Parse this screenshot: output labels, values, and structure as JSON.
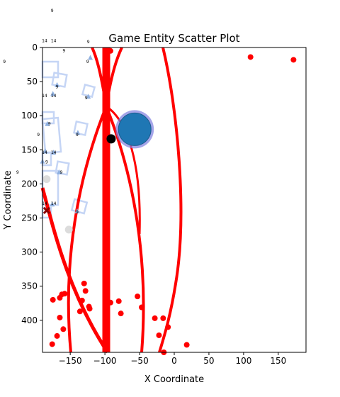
{
  "chart_data": {
    "type": "scatter",
    "title": "Game Entity Scatter Plot",
    "xlabel": "X Coordinate",
    "ylabel": "Y Coordinate",
    "xlim": [
      -190,
      190
    ],
    "ylim": [
      447,
      0
    ],
    "y_inverted": true,
    "grid": false,
    "x_ticks": [
      -150,
      -100,
      -50,
      0,
      50,
      100,
      150
    ],
    "y_ticks": [
      0,
      50,
      100,
      150,
      200,
      250,
      300,
      350,
      400
    ],
    "colors": {
      "red": "#ff0000",
      "blue": "#1f77b4",
      "ring": "#7f7fdf",
      "black": "#000000",
      "darkred": "#8b0000",
      "pale_blue": "#c5d5f5",
      "tri_blue": "#8fb0e0",
      "gray": "#d8d8d8"
    },
    "red_points": [
      [
        110,
        14
      ],
      [
        172,
        18
      ],
      [
        -92,
        5
      ],
      [
        -175,
        370
      ],
      [
        -165,
        367
      ],
      [
        -162,
        362
      ],
      [
        -158,
        361
      ],
      [
        -130,
        346
      ],
      [
        -128,
        357
      ],
      [
        -133,
        371
      ],
      [
        -123,
        380
      ],
      [
        -122,
        383
      ],
      [
        -136,
        387
      ],
      [
        -165,
        396
      ],
      [
        -160,
        413
      ],
      [
        -169,
        423
      ],
      [
        -176,
        435
      ],
      [
        -92,
        374
      ],
      [
        -80,
        372
      ],
      [
        -77,
        390
      ],
      [
        -53,
        365
      ],
      [
        -47,
        381
      ],
      [
        -28,
        397
      ],
      [
        -16,
        397
      ],
      [
        -9,
        410
      ],
      [
        -22,
        422
      ],
      [
        -15,
        447
      ],
      [
        18,
        436
      ]
    ],
    "blue_circle": {
      "x": -57,
      "y": 120
    },
    "black_point": {
      "x": -91,
      "y": 134
    },
    "dark_x_marker": {
      "x": -184,
      "y": 239
    },
    "gray_points": [
      [
        -184,
        193
      ],
      [
        -152,
        267
      ]
    ],
    "triangles": [
      [
        -169,
        55
      ],
      [
        -175,
        68
      ],
      [
        -124,
        72
      ],
      [
        -121,
        15
      ],
      [
        -183,
        112
      ],
      [
        -139,
        125
      ],
      [
        -186,
        152
      ],
      [
        -174,
        154
      ],
      [
        -190,
        167
      ],
      [
        -166,
        183
      ],
      [
        -176,
        230
      ],
      [
        -140,
        240
      ]
    ],
    "annotations": [
      {
        "text": "9",
        "x": -176,
        "y": -52
      },
      {
        "text": "14",
        "x": -187,
        "y": -8
      },
      {
        "text": "14",
        "x": -174,
        "y": -8
      },
      {
        "text": "9",
        "x": -124,
        "y": -6
      },
      {
        "text": "9",
        "x": -159,
        "y": 7
      },
      {
        "text": "9",
        "x": -125,
        "y": 23
      },
      {
        "text": "9",
        "x": -245,
        "y": 23
      },
      {
        "text": "9",
        "x": -169,
        "y": 60
      },
      {
        "text": "14",
        "x": -174,
        "y": 73
      },
      {
        "text": "14",
        "x": -187,
        "y": 73
      },
      {
        "text": "9",
        "x": -127,
        "y": 76
      },
      {
        "text": "9",
        "x": -180,
        "y": 114
      },
      {
        "text": "9",
        "x": -196,
        "y": 130
      },
      {
        "text": "9",
        "x": -140,
        "y": 130
      },
      {
        "text": "14",
        "x": -174,
        "y": 156
      },
      {
        "text": "14",
        "x": -187,
        "y": 156
      },
      {
        "text": "9",
        "x": -184,
        "y": 170
      },
      {
        "text": "9",
        "x": -226,
        "y": 185
      },
      {
        "text": "9",
        "x": -163,
        "y": 185
      },
      {
        "text": "14",
        "x": -187,
        "y": 231
      },
      {
        "text": "14",
        "x": -174,
        "y": 231
      },
      {
        "text": "9",
        "x": -140,
        "y": 243
      }
    ]
  }
}
